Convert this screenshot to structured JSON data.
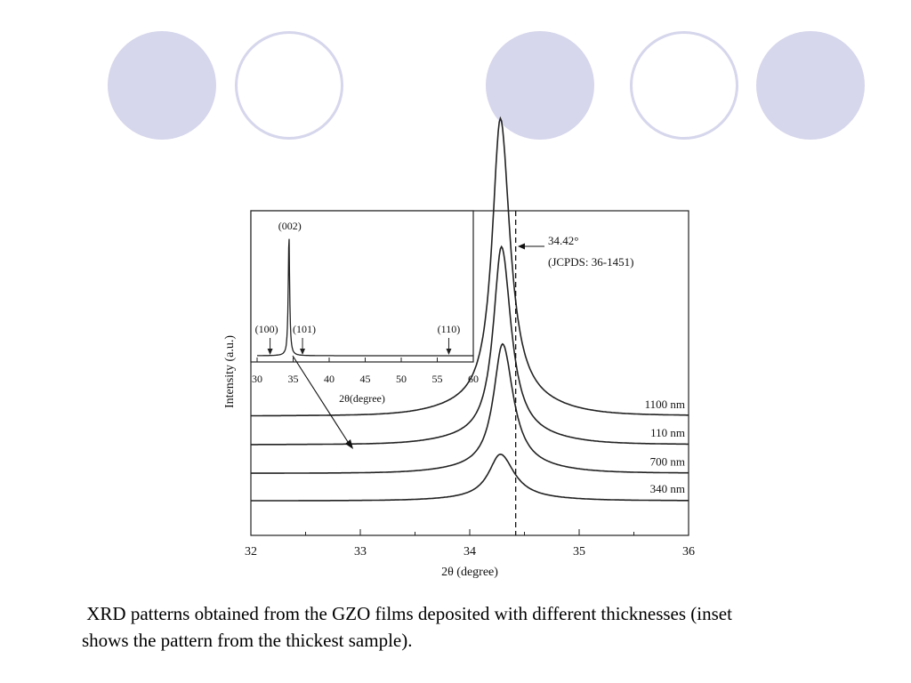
{
  "decoration": {
    "circles": [
      {
        "style": "filled"
      },
      {
        "style": "outline"
      },
      {
        "style": "filled"
      },
      {
        "style": "outline"
      },
      {
        "style": "filled"
      }
    ],
    "accent_color": "#d6d6ec"
  },
  "caption": " XRD patterns obtained from the GZO films deposited with different thicknesses (inset shows the pattern from the thickest sample).",
  "chart_data": [
    {
      "type": "line",
      "xlabel": "2θ (degree)",
      "ylabel": "Intensity (a.u.)",
      "xlim": [
        32,
        36
      ],
      "xticks": [
        32,
        33,
        34,
        35,
        36
      ],
      "grid": false,
      "reference_line": {
        "x": 34.42,
        "label1": "34.42°",
        "label2": "(JCPDS: 36-1451)",
        "style": "dashed"
      },
      "series": [
        {
          "name": "1100 nm",
          "baseline": 0.8,
          "peak_x": 34.28,
          "peak_height": 2.3,
          "width": 0.09
        },
        {
          "name": "110 nm",
          "baseline": 0.57,
          "peak_x": 34.29,
          "peak_height": 1.53,
          "width": 0.09
        },
        {
          "name": "700 nm",
          "baseline": 0.34,
          "peak_x": 34.3,
          "peak_height": 1.0,
          "width": 0.1
        },
        {
          "name": "340 nm",
          "baseline": 0.12,
          "peak_x": 34.28,
          "peak_height": 0.36,
          "width": 0.13
        }
      ]
    },
    {
      "type": "line",
      "role": "inset",
      "xlabel": "2θ(degree)",
      "xlim": [
        30,
        60
      ],
      "xticks": [
        30,
        35,
        40,
        45,
        50,
        55,
        60
      ],
      "series": [
        {
          "name": "1100 nm",
          "peak_x": 34.42,
          "peak_height": 1.0,
          "width": 0.12
        }
      ],
      "annotations": [
        {
          "label": "(002)",
          "x": 34.42
        },
        {
          "label": "(100)",
          "x": 31.8
        },
        {
          "label": "(101)",
          "x": 36.3
        },
        {
          "label": "(110)",
          "x": 56.6
        }
      ]
    }
  ]
}
